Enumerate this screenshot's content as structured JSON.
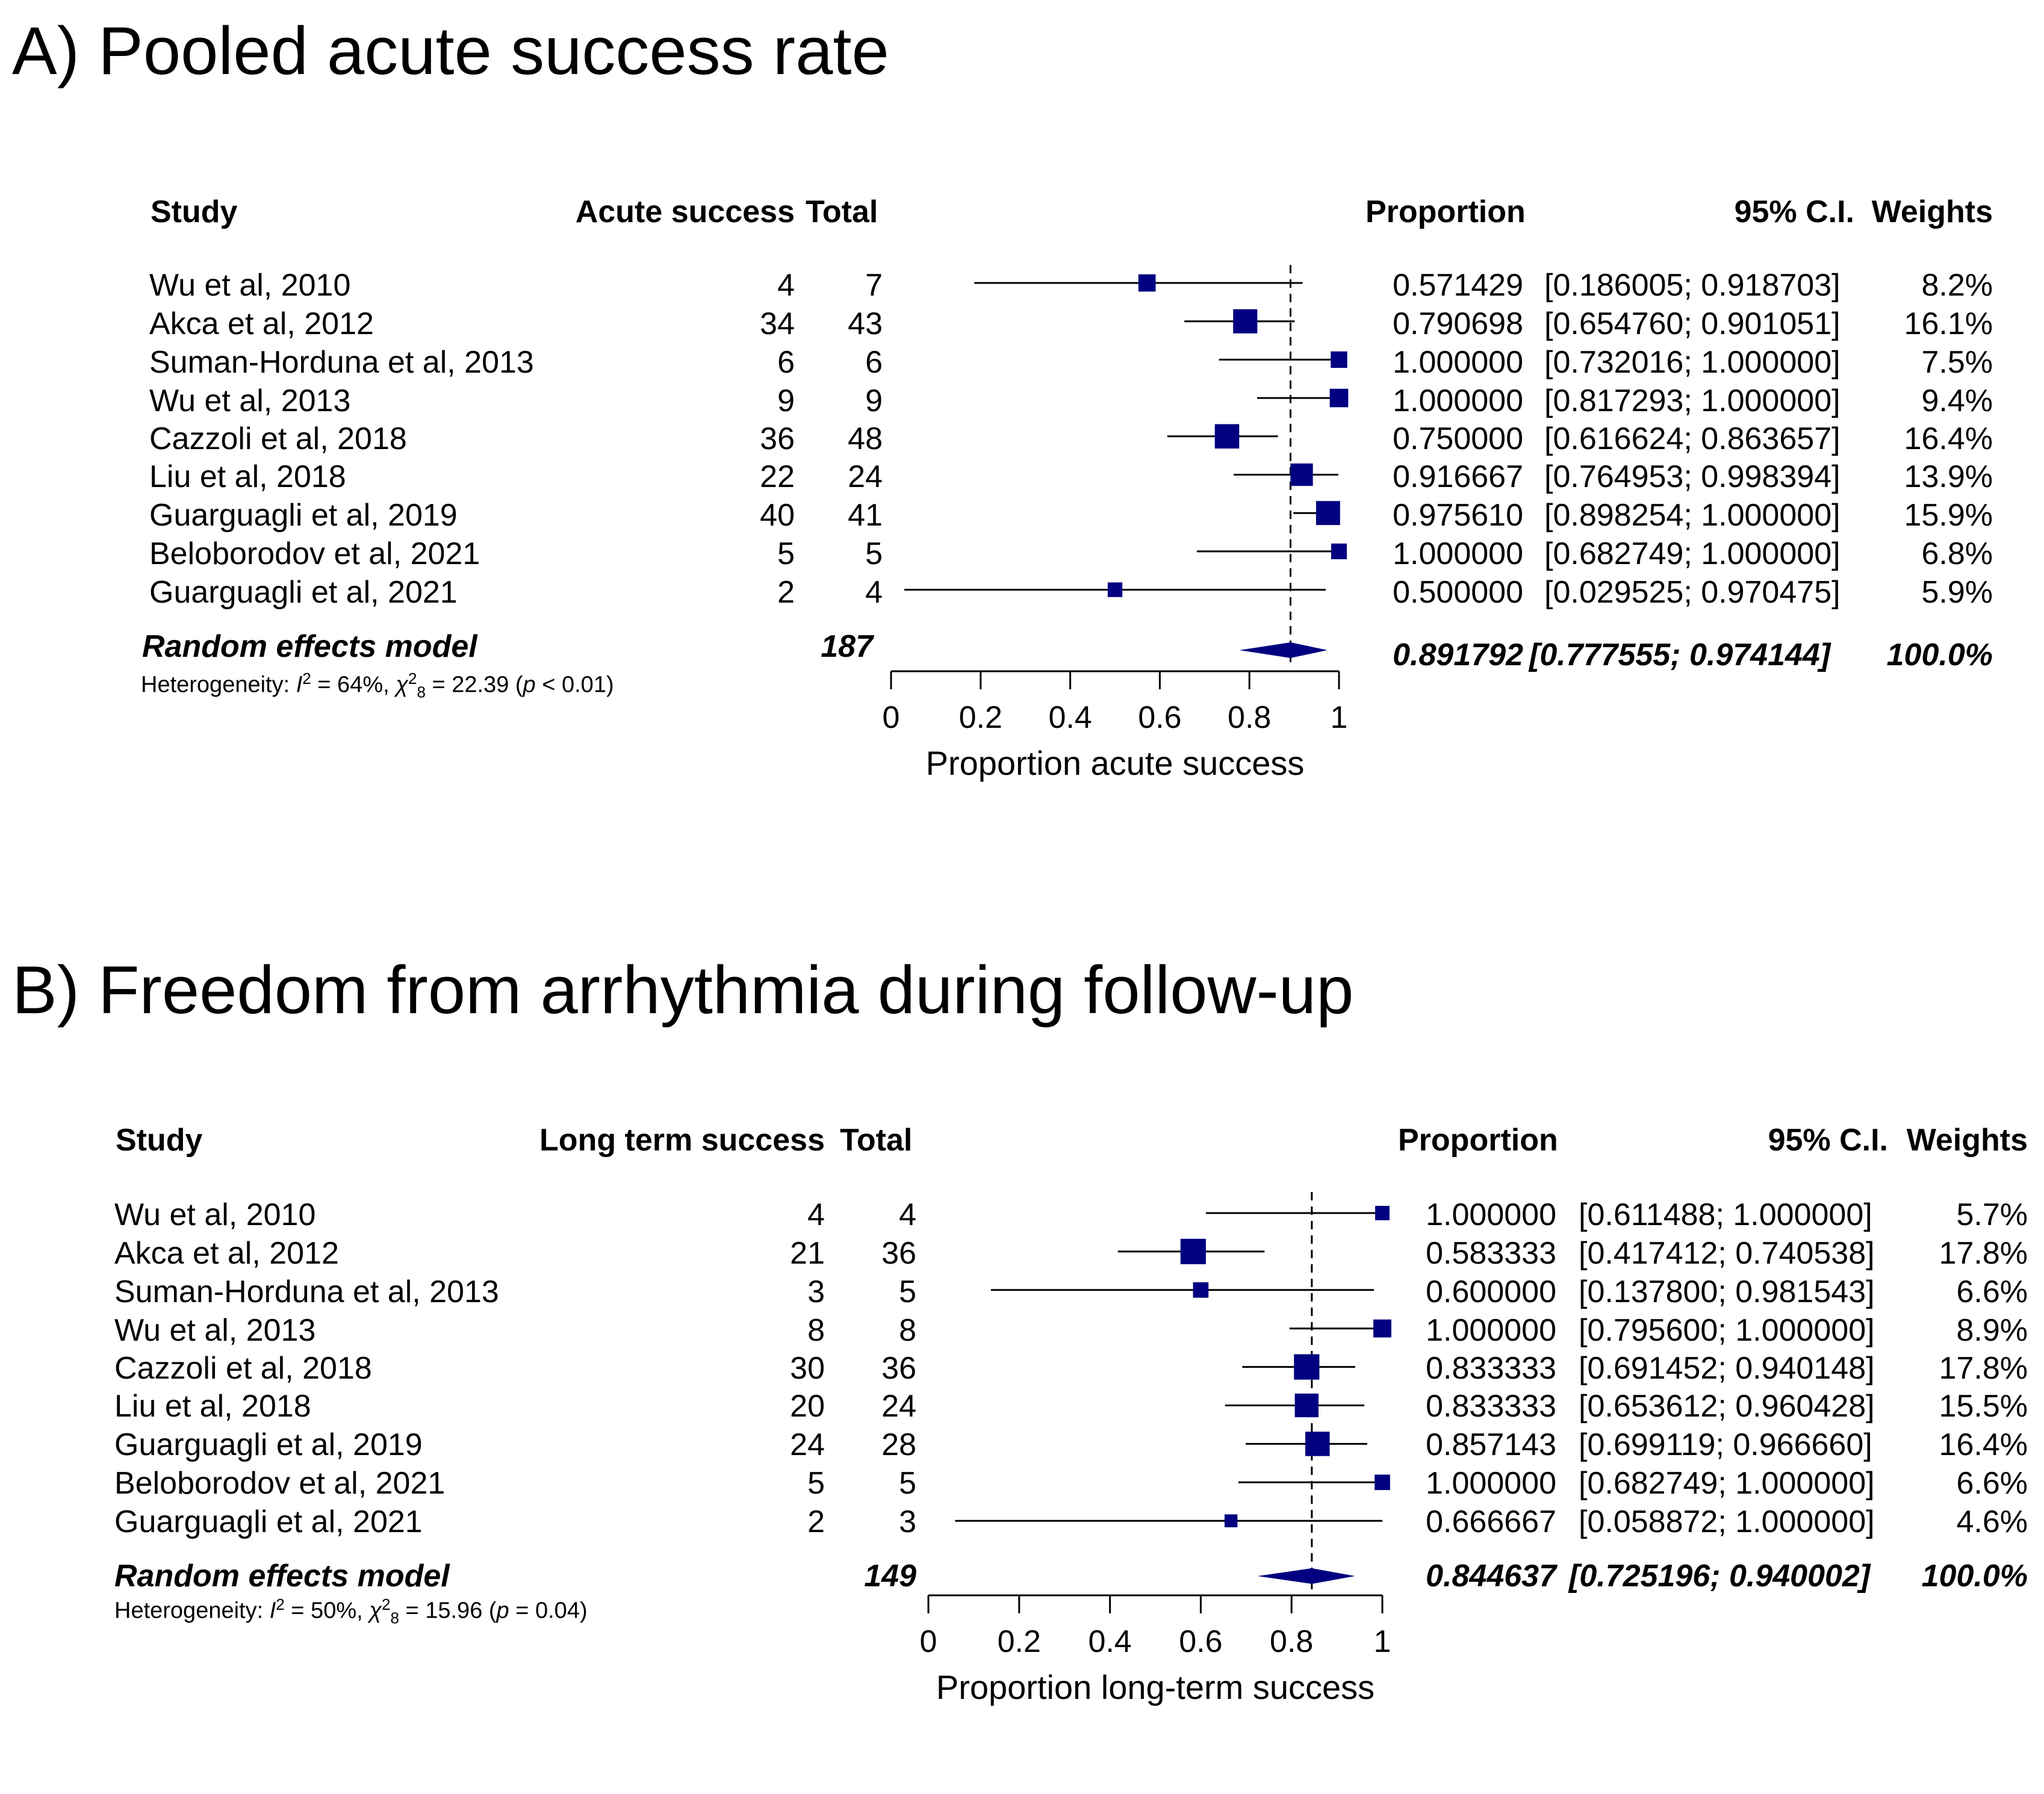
{
  "panels": {
    "a": {
      "title": "A) Pooled acute success rate",
      "headers": {
        "study": "Study",
        "events": "Acute success",
        "total": "Total",
        "proportion": "Proportion",
        "ci": "95% C.I.",
        "weights": "Weights"
      },
      "rows": [
        {
          "study": "Wu et al, 2010",
          "events": "4",
          "total": "7",
          "proportion": "0.571429",
          "ci": "[0.186005; 0.918703]",
          "weight": "8.2%"
        },
        {
          "study": "Akca et al, 2012",
          "events": "34",
          "total": "43",
          "proportion": "0.790698",
          "ci": "[0.654760; 0.901051]",
          "weight": "16.1%"
        },
        {
          "study": "Suman-Horduna et al, 2013",
          "events": "6",
          "total": "6",
          "proportion": "1.000000",
          "ci": "[0.732016; 1.000000]",
          "weight": "7.5%"
        },
        {
          "study": "Wu et al, 2013",
          "events": "9",
          "total": "9",
          "proportion": "1.000000",
          "ci": "[0.817293; 1.000000]",
          "weight": "9.4%"
        },
        {
          "study": "Cazzoli et al, 2018",
          "events": "36",
          "total": "48",
          "proportion": "0.750000",
          "ci": "[0.616624; 0.863657]",
          "weight": "16.4%"
        },
        {
          "study": "Liu et al, 2018",
          "events": "22",
          "total": "24",
          "proportion": "0.916667",
          "ci": "[0.764953; 0.998394]",
          "weight": "13.9%"
        },
        {
          "study": "Guarguagli et al, 2019",
          "events": "40",
          "total": "41",
          "proportion": "0.975610",
          "ci": "[0.898254; 1.000000]",
          "weight": "15.9%"
        },
        {
          "study": "Beloborodov et al, 2021",
          "events": "5",
          "total": "5",
          "proportion": "1.000000",
          "ci": "[0.682749; 1.000000]",
          "weight": "6.8%"
        },
        {
          "study": "Guarguagli et al, 2021",
          "events": "2",
          "total": "4",
          "proportion": "0.500000",
          "ci": "[0.029525; 0.970475]",
          "weight": "5.9%"
        }
      ],
      "pooled": {
        "label": "Random effects model",
        "total": "187",
        "proportion": "0.891792",
        "ci": "[0.777555; 0.974144]",
        "weight": "100.0%"
      },
      "heterogeneity": {
        "prefix": "Heterogeneity: ",
        "i_symbol": "I",
        "i_sup": "2",
        "i_value": " = 64%, ",
        "chi_symbol": "χ",
        "chi_sup": "2",
        "chi_sub": "8",
        "chi_value": " = 22.39 (",
        "p_symbol": "p",
        "p_value": " < 0.01)"
      }
    },
    "b": {
      "title": "B) Freedom from arrhythmia during follow-up",
      "headers": {
        "study": "Study",
        "events": "Long term success",
        "total": "Total",
        "proportion": "Proportion",
        "ci": "95% C.I.",
        "weights": "Weights"
      },
      "rows": [
        {
          "study": "Wu et al, 2010",
          "events": "4",
          "total": "4",
          "proportion": "1.000000",
          "ci": "[0.611488; 1.000000]",
          "weight": "5.7%"
        },
        {
          "study": "Akca et al, 2012",
          "events": "21",
          "total": "36",
          "proportion": "0.583333",
          "ci": "[0.417412; 0.740538]",
          "weight": "17.8%"
        },
        {
          "study": "Suman-Horduna et al, 2013",
          "events": "3",
          "total": "5",
          "proportion": "0.600000",
          "ci": "[0.137800; 0.981543]",
          "weight": "6.6%"
        },
        {
          "study": "Wu et al, 2013",
          "events": "8",
          "total": "8",
          "proportion": "1.000000",
          "ci": "[0.795600; 1.000000]",
          "weight": "8.9%"
        },
        {
          "study": "Cazzoli et al, 2018",
          "events": "30",
          "total": "36",
          "proportion": "0.833333",
          "ci": "[0.691452; 0.940148]",
          "weight": "17.8%"
        },
        {
          "study": "Liu et al, 2018",
          "events": "20",
          "total": "24",
          "proportion": "0.833333",
          "ci": "[0.653612; 0.960428]",
          "weight": "15.5%"
        },
        {
          "study": "Guarguagli et al, 2019",
          "events": "24",
          "total": "28",
          "proportion": "0.857143",
          "ci": "[0.699119; 0.966660]",
          "weight": "16.4%"
        },
        {
          "study": "Beloborodov et al, 2021",
          "events": "5",
          "total": "5",
          "proportion": "1.000000",
          "ci": "[0.682749; 1.000000]",
          "weight": "6.6%"
        },
        {
          "study": "Guarguagli et al, 2021",
          "events": "2",
          "total": "3",
          "proportion": "0.666667",
          "ci": "[0.058872; 1.000000]",
          "weight": "4.6%"
        }
      ],
      "pooled": {
        "label": "Random effects model",
        "total": "149",
        "proportion": "0.844637",
        "ci": "[0.725196; 0.940002]",
        "weight": "100.0%"
      },
      "heterogeneity": {
        "prefix": "Heterogeneity: ",
        "i_symbol": "I",
        "i_sup": "2",
        "i_value": " = 50%, ",
        "chi_symbol": "χ",
        "chi_sup": "2",
        "chi_sub": "8",
        "chi_value": " = 15.96 (",
        "p_symbol": "p",
        "p_value": " = 0.04)"
      }
    }
  },
  "chart_data": [
    {
      "type": "forest",
      "title": "A) Pooled acute success rate",
      "xlabel": "Proportion acute success",
      "xlim": [
        0,
        1
      ],
      "xticks": [
        "0",
        "0.2",
        "0.4",
        "0.6",
        "0.8",
        "1"
      ],
      "estimates": [
        0.571429,
        0.790698,
        1.0,
        1.0,
        0.75,
        0.916667,
        0.97561,
        1.0,
        0.5
      ],
      "ci_lower": [
        0.186005,
        0.65476,
        0.732016,
        0.817293,
        0.616624,
        0.764953,
        0.898254,
        0.682749,
        0.029525
      ],
      "ci_upper": [
        0.918703,
        0.901051,
        1.0,
        1.0,
        0.863657,
        0.998394,
        1.0,
        1.0,
        0.970475
      ],
      "weights": [
        8.2,
        16.1,
        7.5,
        9.4,
        16.4,
        13.9,
        15.9,
        6.8,
        5.9
      ],
      "pooled_estimate": 0.891792,
      "pooled_ci": [
        0.777555,
        0.974144
      ],
      "marker_color": "#000080"
    },
    {
      "type": "forest",
      "title": "B) Freedom from arrhythmia during follow-up",
      "xlabel": "Proportion long-term success",
      "xlim": [
        0,
        1
      ],
      "xticks": [
        "0",
        "0.2",
        "0.4",
        "0.6",
        "0.8",
        "1"
      ],
      "estimates": [
        1.0,
        0.583333,
        0.6,
        1.0,
        0.833333,
        0.833333,
        0.857143,
        1.0,
        0.666667
      ],
      "ci_lower": [
        0.611488,
        0.417412,
        0.1378,
        0.7956,
        0.691452,
        0.653612,
        0.699119,
        0.682749,
        0.058872
      ],
      "ci_upper": [
        1.0,
        0.740538,
        0.981543,
        1.0,
        0.940148,
        0.960428,
        0.96666,
        1.0,
        1.0
      ],
      "weights": [
        5.7,
        17.8,
        6.6,
        8.9,
        17.8,
        15.5,
        16.4,
        6.6,
        4.6
      ],
      "pooled_estimate": 0.844637,
      "pooled_ci": [
        0.725196,
        0.940002
      ],
      "marker_color": "#000080"
    }
  ]
}
